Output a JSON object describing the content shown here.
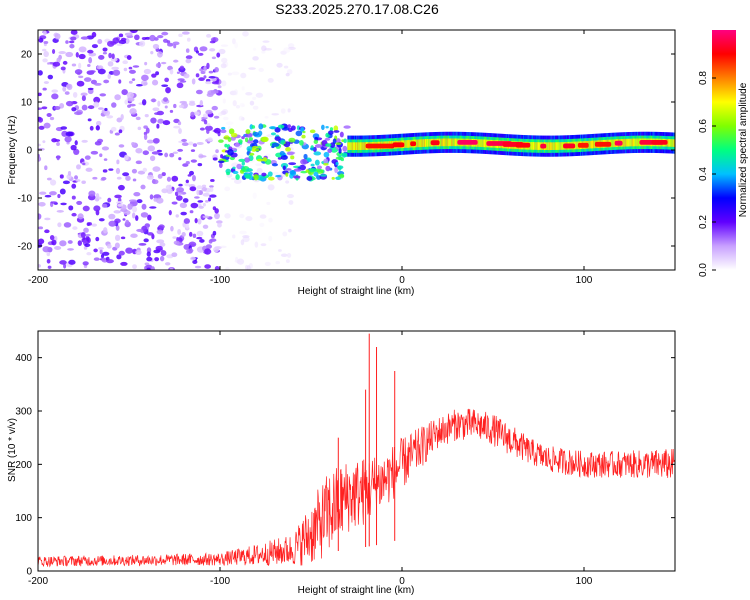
{
  "title": "S233.2025.270.17.08.C26",
  "chart_data": [
    {
      "type": "heatmap",
      "name": "spectrogram",
      "xlabel": "Height of straight line (km)",
      "ylabel": "Frequency (Hz)",
      "xlim": [
        -200,
        150
      ],
      "ylim": [
        -25,
        25
      ],
      "xticks": [
        -200,
        -100,
        0,
        100
      ],
      "yticks": [
        -20,
        -10,
        0,
        10,
        20
      ],
      "colorbar": {
        "label": "Normalized spectral amplitude",
        "range": [
          0,
          1
        ],
        "ticks": [
          0.0,
          0.2,
          0.4,
          0.6,
          0.8
        ],
        "tick_labels": [
          "0.0",
          "0.2",
          "0.4",
          "0.6",
          "0.8"
        ],
        "colors": [
          "#ffffff",
          "#c8a0ff",
          "#6000ff",
          "#0000ff",
          "#00c0ff",
          "#00ff80",
          "#80ff00",
          "#ffff00",
          "#ff8000",
          "#ff0000",
          "#ff0080"
        ]
      },
      "regions": [
        {
          "x": [
            -200,
            -100
          ],
          "freq_range": [
            -25,
            25
          ],
          "amplitude": 0.12,
          "description": "broadband noise"
        },
        {
          "x": [
            -100,
            -60
          ],
          "freq_range": [
            -25,
            25
          ],
          "amplitude": 0.03,
          "description": "sparse noise"
        },
        {
          "x": [
            -100,
            -30
          ],
          "freq_range": [
            -6,
            5
          ],
          "amplitude": 0.35,
          "description": "scattered signal"
        },
        {
          "x": [
            -30,
            150
          ],
          "freq_range": [
            0,
            3
          ],
          "amplitude": 0.9,
          "description": "narrow band near 1.5 Hz"
        }
      ]
    },
    {
      "type": "line",
      "name": "snr",
      "xlabel": "Height of straight line (km)",
      "ylabel": "SNR (10 * v/v)",
      "xlim": [
        -200,
        150
      ],
      "ylim": [
        0,
        450
      ],
      "xticks": [
        -200,
        -100,
        0,
        100
      ],
      "yticks": [
        0,
        100,
        200,
        300,
        400
      ],
      "color": "#ff2020",
      "envelope": {
        "x": [
          -200,
          -150,
          -100,
          -80,
          -60,
          -50,
          -40,
          -30,
          -20,
          -10,
          0,
          10,
          20,
          30,
          40,
          50,
          60,
          70,
          80,
          100,
          120,
          150
        ],
        "mean": [
          18,
          20,
          22,
          30,
          40,
          70,
          110,
          140,
          150,
          170,
          200,
          230,
          260,
          275,
          275,
          265,
          245,
          225,
          210,
          200,
          200,
          200
        ],
        "spread": [
          10,
          10,
          12,
          20,
          30,
          60,
          80,
          70,
          65,
          55,
          50,
          40,
          30,
          30,
          30,
          30,
          30,
          25,
          25,
          25,
          25,
          30
        ]
      },
      "peaks": [
        {
          "x": -18,
          "y": 445
        },
        {
          "x": -14,
          "y": 420
        },
        {
          "x": -4,
          "y": 375
        },
        {
          "x": -20,
          "y": 340
        },
        {
          "x": -35,
          "y": 250
        }
      ]
    }
  ]
}
